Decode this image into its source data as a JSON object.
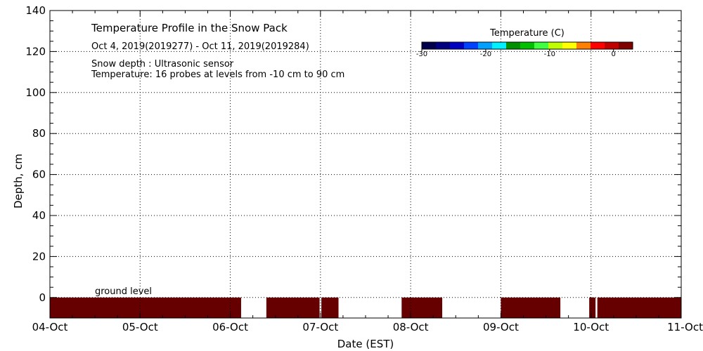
{
  "chart_data": {
    "type": "heatmap",
    "title": "Temperature Profile in the Snow Pack",
    "subtitle": "Oct  4, 2019(2019277) - Oct 11, 2019(2019284)",
    "notes": [
      "Snow depth : Ultrasonic sensor",
      "Temperature: 16 probes at levels from -10 cm to 90 cm"
    ],
    "xlabel": "Date (EST)",
    "ylabel": "Depth, cm",
    "x_ticks": [
      "04-Oct",
      "05-Oct",
      "06-Oct",
      "07-Oct",
      "08-Oct",
      "09-Oct",
      "10-Oct",
      "11-Oct"
    ],
    "y_ticks": [
      0,
      20,
      40,
      60,
      80,
      100,
      120,
      140
    ],
    "ylim": [
      -10,
      140
    ],
    "xlim_days": [
      0,
      7
    ],
    "grid": true,
    "ground_label": "ground level",
    "colorbar": {
      "title": "Temperature (C)",
      "range": [
        -30,
        3
      ],
      "ticks": [
        -30,
        -20,
        -10,
        0
      ],
      "colors": [
        "#00004d",
        "#000080",
        "#0000c0",
        "#0040ff",
        "#00a0ff",
        "#00f0ff",
        "#009000",
        "#00c000",
        "#40ff40",
        "#c0ff00",
        "#ffff00",
        "#ff8000",
        "#ff0000",
        "#c00000",
        "#800000"
      ]
    },
    "soil_temperature": {
      "depth_range": [
        -10,
        0
      ],
      "value_description": "above 0 C (dark red)",
      "color": "#660000",
      "segments_days": [
        [
          0.0,
          2.12
        ],
        [
          2.4,
          2.99
        ],
        [
          3.01,
          3.2
        ],
        [
          3.9,
          4.35
        ],
        [
          5.0,
          5.66
        ],
        [
          5.98,
          6.05
        ],
        [
          6.07,
          7.0
        ]
      ]
    },
    "snow_depth": []
  }
}
